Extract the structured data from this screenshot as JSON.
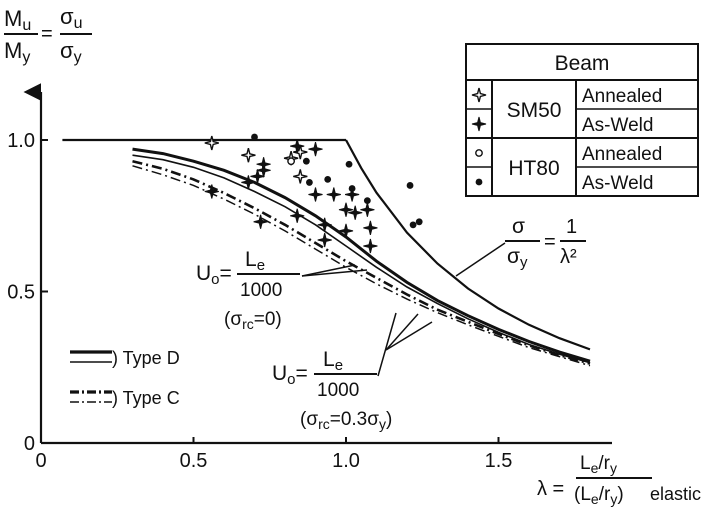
{
  "chart_data": {
    "type": "line",
    "ylabel": {
      "num": "M",
      "num_sub": "u",
      "den": "M",
      "den_sub": "y",
      "eq": "=",
      "snum": "σ",
      "snum_sub": "u",
      "sden": "σ",
      "sden_sub": "y"
    },
    "xlabel": {
      "lambda": "λ =",
      "num": "L",
      "num_sub": "e",
      "num_tail": "/r",
      "num_tail_sub": "y",
      "den": "(L",
      "den_sub": "e",
      "den_tail": "/r",
      "den_tail_sub": "y",
      "den_close": ")",
      "suffix": "elastic"
    },
    "xlim": [
      0,
      1.9
    ],
    "ylim": [
      0,
      1.1
    ],
    "x_ticks": [
      0,
      0.5,
      1.0,
      1.5
    ],
    "x_tick_labels": [
      "0",
      "0.5",
      "1.0",
      "1.5"
    ],
    "y_ticks": [
      0,
      0.5,
      1.0
    ],
    "y_tick_labels": [
      "0",
      "0.5",
      "1.0"
    ],
    "legend": {
      "title": "Beam",
      "groups": [
        {
          "name": "SM50",
          "entries": [
            {
              "symbol": "open-star",
              "label": "Annealed"
            },
            {
              "symbol": "filled-star",
              "label": "As-Weld"
            }
          ]
        },
        {
          "name": "HT80",
          "entries": [
            {
              "symbol": "open-circle",
              "label": "Annealed"
            },
            {
              "symbol": "filled-circle",
              "label": "As-Weld"
            }
          ]
        }
      ]
    },
    "line_legend": [
      {
        "label": ") Type D"
      },
      {
        "label": ") Type C"
      }
    ],
    "annotations": {
      "euler": {
        "lhs_num": "σ",
        "lhs_den": "σ",
        "lhs_den_sub": "y",
        "eq": "=",
        "rhs_num": "1",
        "rhs_den": "λ²"
      },
      "u0_a": {
        "lhs": "U",
        "lhs_sub": "o",
        "eq": "=",
        "num": "L",
        "num_sub": "e",
        "den": "1000",
        "cond": "(σ",
        "cond_sub": "rc",
        "cond_tail": "=0)"
      },
      "u0_b": {
        "lhs": "U",
        "lhs_sub": "o",
        "eq": "=",
        "num": "L",
        "num_sub": "e",
        "den": "1000",
        "cond": "(σ",
        "cond_sub": "rc",
        "cond_tail": "=0.3σ",
        "cond_tail_sub": "y",
        "cond_close": ")"
      }
    },
    "series": [
      {
        "style": "plateau",
        "x": [
          0.07,
          1.0
        ],
        "y": [
          1.0,
          1.0
        ]
      },
      {
        "style": "euler",
        "x": [
          1.0,
          1.05,
          1.1,
          1.2,
          1.3,
          1.4,
          1.5,
          1.6,
          1.7,
          1.8
        ],
        "y": [
          1.0,
          0.907,
          0.826,
          0.694,
          0.592,
          0.51,
          0.444,
          0.39,
          0.346,
          0.309
        ]
      },
      {
        "style": "solid-thick",
        "x": [
          0.3,
          0.4,
          0.5,
          0.6,
          0.7,
          0.8,
          0.9,
          1.0,
          1.1,
          1.2,
          1.3,
          1.4,
          1.5,
          1.6,
          1.7,
          1.8
        ],
        "y": [
          0.97,
          0.955,
          0.93,
          0.9,
          0.86,
          0.81,
          0.75,
          0.68,
          0.6,
          0.53,
          0.47,
          0.42,
          0.375,
          0.335,
          0.3,
          0.27
        ]
      },
      {
        "style": "solid-thin",
        "x": [
          0.3,
          0.4,
          0.5,
          0.6,
          0.7,
          0.8,
          0.9,
          1.0,
          1.1,
          1.2,
          1.3,
          1.4,
          1.5,
          1.6,
          1.7,
          1.8
        ],
        "y": [
          0.95,
          0.935,
          0.91,
          0.875,
          0.83,
          0.78,
          0.72,
          0.65,
          0.58,
          0.515,
          0.46,
          0.41,
          0.365,
          0.325,
          0.293,
          0.265
        ]
      },
      {
        "style": "dashdot-thick",
        "x": [
          0.3,
          0.4,
          0.5,
          0.6,
          0.7,
          0.8,
          0.9,
          1.0,
          1.1,
          1.2,
          1.3,
          1.4,
          1.5,
          1.6,
          1.7,
          1.8
        ],
        "y": [
          0.93,
          0.905,
          0.87,
          0.825,
          0.775,
          0.72,
          0.66,
          0.6,
          0.545,
          0.49,
          0.44,
          0.4,
          0.36,
          0.322,
          0.29,
          0.262
        ]
      },
      {
        "style": "dashdot-thin",
        "x": [
          0.3,
          0.4,
          0.5,
          0.6,
          0.7,
          0.8,
          0.9,
          1.0,
          1.1,
          1.2,
          1.3,
          1.4,
          1.5,
          1.6,
          1.7,
          1.8
        ],
        "y": [
          0.915,
          0.885,
          0.85,
          0.805,
          0.755,
          0.7,
          0.64,
          0.58,
          0.525,
          0.475,
          0.43,
          0.39,
          0.352,
          0.315,
          0.285,
          0.255
        ]
      }
    ],
    "points": [
      {
        "kind": "open-star",
        "x": 0.56,
        "y": 0.99
      },
      {
        "kind": "open-star",
        "x": 0.68,
        "y": 0.95
      },
      {
        "kind": "open-star",
        "x": 0.82,
        "y": 0.94
      },
      {
        "kind": "open-star",
        "x": 0.85,
        "y": 0.96
      },
      {
        "kind": "open-star",
        "x": 0.85,
        "y": 0.88
      },
      {
        "kind": "filled-star",
        "x": 0.56,
        "y": 0.83
      },
      {
        "kind": "filled-star",
        "x": 0.68,
        "y": 0.86
      },
      {
        "kind": "filled-star",
        "x": 0.71,
        "y": 0.88
      },
      {
        "kind": "filled-star",
        "x": 0.73,
        "y": 0.92
      },
      {
        "kind": "filled-star",
        "x": 0.73,
        "y": 0.9
      },
      {
        "kind": "filled-star",
        "x": 0.72,
        "y": 0.73
      },
      {
        "kind": "filled-star",
        "x": 0.84,
        "y": 0.98
      },
      {
        "kind": "filled-star",
        "x": 0.9,
        "y": 0.97
      },
      {
        "kind": "filled-star",
        "x": 0.84,
        "y": 0.75
      },
      {
        "kind": "filled-star",
        "x": 0.9,
        "y": 0.82
      },
      {
        "kind": "filled-star",
        "x": 0.93,
        "y": 0.72
      },
      {
        "kind": "filled-star",
        "x": 0.93,
        "y": 0.67
      },
      {
        "kind": "filled-star",
        "x": 0.96,
        "y": 0.82
      },
      {
        "kind": "filled-star",
        "x": 1.0,
        "y": 0.77
      },
      {
        "kind": "filled-star",
        "x": 1.0,
        "y": 0.7
      },
      {
        "kind": "filled-star",
        "x": 1.02,
        "y": 0.82
      },
      {
        "kind": "filled-star",
        "x": 1.03,
        "y": 0.76
      },
      {
        "kind": "filled-star",
        "x": 1.07,
        "y": 0.77
      },
      {
        "kind": "filled-star",
        "x": 1.08,
        "y": 0.71
      },
      {
        "kind": "filled-star",
        "x": 1.08,
        "y": 0.65
      },
      {
        "kind": "open-circle",
        "x": 0.82,
        "y": 0.93
      },
      {
        "kind": "filled-circle",
        "x": 0.7,
        "y": 1.01
      },
      {
        "kind": "filled-circle",
        "x": 0.87,
        "y": 0.93
      },
      {
        "kind": "filled-circle",
        "x": 0.88,
        "y": 0.86
      },
      {
        "kind": "filled-circle",
        "x": 0.94,
        "y": 0.87
      },
      {
        "kind": "filled-circle",
        "x": 1.01,
        "y": 0.92
      },
      {
        "kind": "filled-circle",
        "x": 1.02,
        "y": 0.84
      },
      {
        "kind": "filled-circle",
        "x": 1.07,
        "y": 0.8
      },
      {
        "kind": "filled-circle",
        "x": 1.21,
        "y": 0.85
      },
      {
        "kind": "filled-circle",
        "x": 1.22,
        "y": 0.72
      },
      {
        "kind": "filled-circle",
        "x": 1.24,
        "y": 0.73
      }
    ]
  }
}
